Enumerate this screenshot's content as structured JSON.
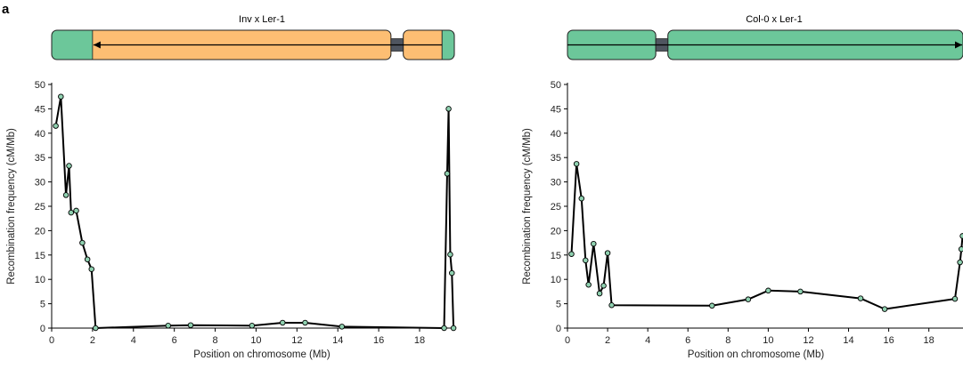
{
  "panel_label": "a",
  "colors": {
    "inverted": "#FDBE73",
    "collinear": "#6CC79A",
    "centromere": "#4F5560",
    "line": "#000000",
    "point_fill": "#8FD1B0"
  },
  "chart_data": [
    {
      "type": "line",
      "title": "Inv x Ler-1",
      "xlabel": "Position on chromosome (Mb)",
      "ylabel": "Recombination frequency (cM/Mb)",
      "xlim": [
        0,
        19.7
      ],
      "ylim": [
        0,
        50
      ],
      "xticks": [
        "0",
        "2",
        "4",
        "6",
        "8",
        "10",
        "12",
        "14",
        "16",
        "18"
      ],
      "yticks": [
        "0",
        "5",
        "10",
        "15",
        "20",
        "25",
        "30",
        "35",
        "40",
        "45",
        "50"
      ],
      "grid": false,
      "chromosome": {
        "length": 19.7,
        "segments": [
          {
            "kind": "collinear",
            "start": 0,
            "end": 2.0
          },
          {
            "kind": "inverted",
            "start": 2.0,
            "end": 16.6
          },
          {
            "kind": "centromere",
            "start": 16.6,
            "end": 17.2
          },
          {
            "kind": "inverted",
            "start": 17.2,
            "end": 19.1
          },
          {
            "kind": "collinear",
            "start": 19.1,
            "end": 19.7
          }
        ],
        "arrow": {
          "from": 19.1,
          "to": 2.0
        }
      },
      "x": [
        0.2,
        0.45,
        0.7,
        0.85,
        0.95,
        1.2,
        1.5,
        1.75,
        1.95,
        2.15,
        5.7,
        6.8,
        9.8,
        11.3,
        12.4,
        14.2,
        19.2,
        19.35,
        19.42,
        19.5,
        19.58,
        19.66
      ],
      "y": [
        41.5,
        47.5,
        27.3,
        33.3,
        23.7,
        24.1,
        17.5,
        14.1,
        12.1,
        0.0,
        0.5,
        0.6,
        0.5,
        1.1,
        1.1,
        0.3,
        0.0,
        31.7,
        45.0,
        15.1,
        11.3,
        0.0
      ]
    },
    {
      "type": "line",
      "title": "Col-0 x Ler-1",
      "xlabel": "Position on chromosome (Mb)",
      "ylabel": "Recombination frequency (cM/Mb)",
      "xlim": [
        0,
        19.7
      ],
      "ylim": [
        0,
        50
      ],
      "xticks": [
        "0",
        "2",
        "4",
        "6",
        "8",
        "10",
        "12",
        "14",
        "16",
        "18"
      ],
      "yticks": [
        "0",
        "5",
        "10",
        "15",
        "20",
        "25",
        "30",
        "35",
        "40",
        "45",
        "50"
      ],
      "grid": false,
      "chromosome": {
        "length": 19.7,
        "segments": [
          {
            "kind": "collinear",
            "start": 0,
            "end": 4.4
          },
          {
            "kind": "centromere",
            "start": 4.4,
            "end": 5.0
          },
          {
            "kind": "collinear",
            "start": 5.0,
            "end": 19.7
          }
        ],
        "arrow": {
          "from": 0,
          "to": 19.7
        }
      },
      "x": [
        0.2,
        0.45,
        0.7,
        0.9,
        1.05,
        1.3,
        1.6,
        1.8,
        2.0,
        2.2,
        7.2,
        9.0,
        10.0,
        11.6,
        14.6,
        15.8,
        19.3,
        19.55,
        19.62,
        19.68
      ],
      "y": [
        15.2,
        33.7,
        26.6,
        13.9,
        8.9,
        17.3,
        7.1,
        8.7,
        15.4,
        4.7,
        4.6,
        5.9,
        7.7,
        7.5,
        6.1,
        3.9,
        6.0,
        13.5,
        16.2,
        18.9
      ]
    }
  ]
}
